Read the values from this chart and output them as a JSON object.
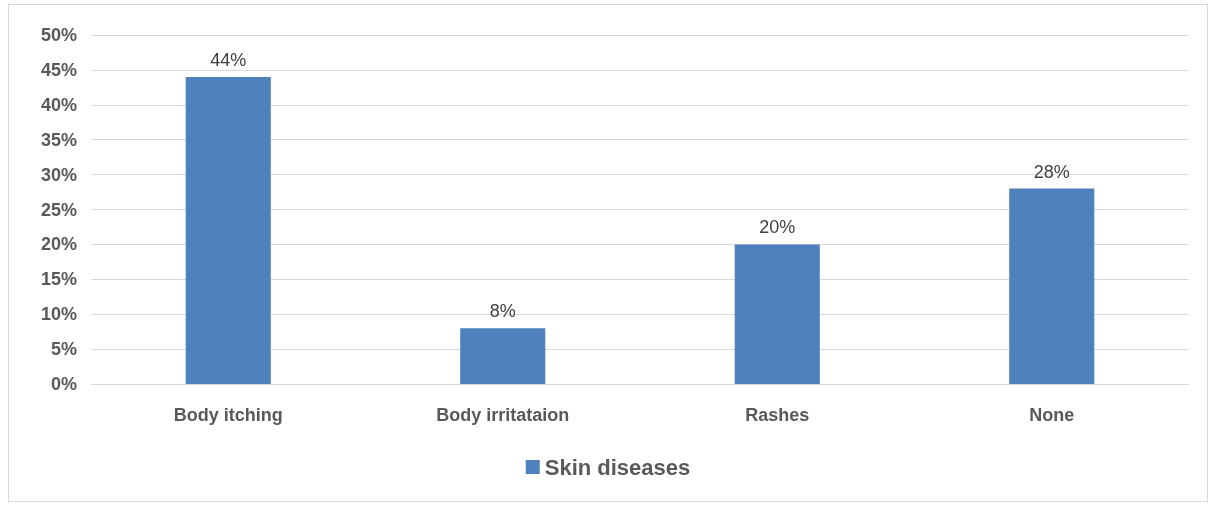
{
  "chart_data": {
    "type": "bar",
    "categories": [
      "Body itching",
      "Body irritataion",
      "Rashes",
      "None"
    ],
    "series": [
      {
        "name": "Skin diseases",
        "color": "#4f81bd",
        "values": [
          44,
          8,
          20,
          28
        ],
        "value_labels": [
          "44%",
          "8%",
          "20%",
          "28%"
        ]
      }
    ],
    "ylim": [
      0,
      50
    ],
    "yticks": [
      {
        "value": 0,
        "label": "0%"
      },
      {
        "value": 5,
        "label": "5%"
      },
      {
        "value": 10,
        "label": "10%"
      },
      {
        "value": 15,
        "label": "15%"
      },
      {
        "value": 20,
        "label": "20%"
      },
      {
        "value": 25,
        "label": "25%"
      },
      {
        "value": 30,
        "label": "30%"
      },
      {
        "value": 35,
        "label": "35%"
      },
      {
        "value": 40,
        "label": "40%"
      },
      {
        "value": 45,
        "label": "45%"
      },
      {
        "value": 50,
        "label": "50%"
      }
    ],
    "grid": "y",
    "legend": "bottom"
  }
}
